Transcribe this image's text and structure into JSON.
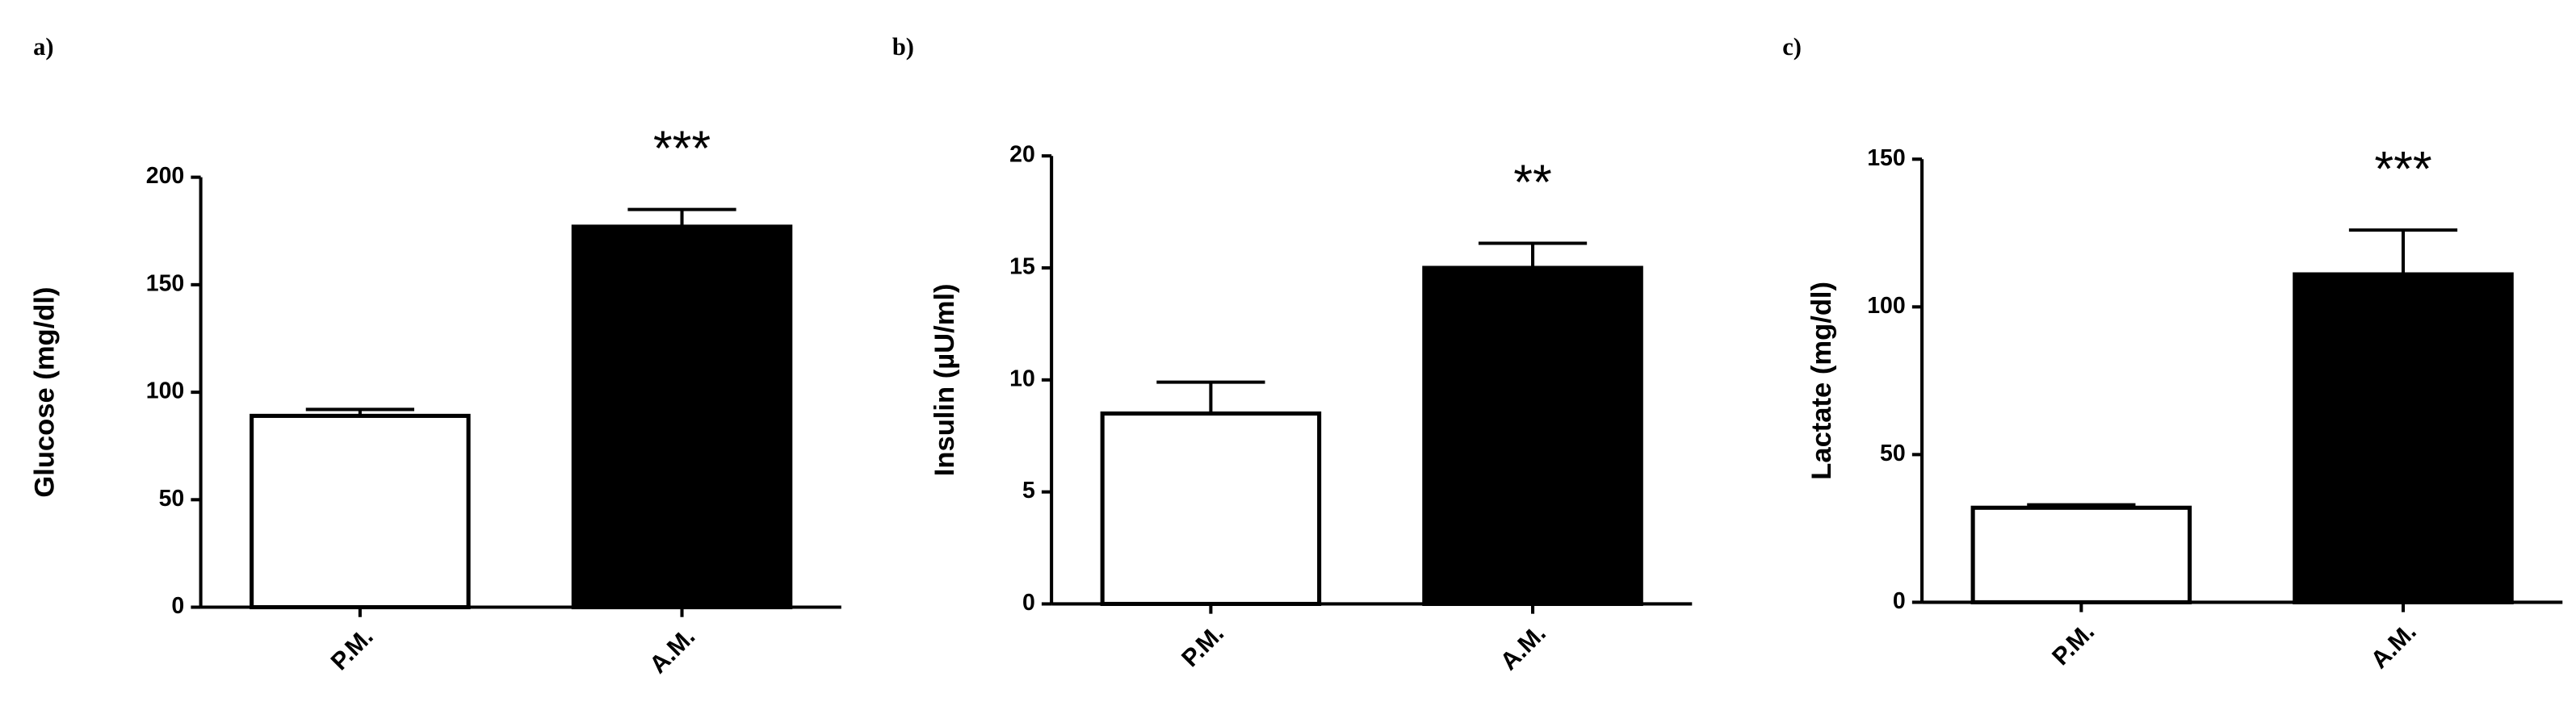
{
  "chart_data": [
    {
      "type": "bar",
      "panel_label": "a)",
      "y_label": "Glucose (mg/dl)",
      "categories": [
        "P.M.",
        "A.M."
      ],
      "values": [
        89,
        177
      ],
      "errors": [
        3,
        8
      ],
      "colors": [
        "#ffffff",
        "#000000"
      ],
      "annotation": "***",
      "ylim": [
        0,
        200
      ],
      "yticks": [
        0,
        50,
        100,
        150,
        200
      ]
    },
    {
      "type": "bar",
      "panel_label": "b)",
      "y_label": "Insulin (µU/ml)",
      "categories": [
        "P.M.",
        "A.M."
      ],
      "values": [
        8.5,
        15
      ],
      "errors": [
        1.4,
        1.1
      ],
      "colors": [
        "#ffffff",
        "#000000"
      ],
      "annotation": "**",
      "ylim": [
        0,
        20
      ],
      "yticks": [
        0,
        5,
        10,
        15,
        20
      ]
    },
    {
      "type": "bar",
      "panel_label": "c)",
      "y_label": "Lactate (mg/dl)",
      "categories": [
        "P.M.",
        "A.M."
      ],
      "values": [
        32,
        111
      ],
      "errors": [
        1,
        15
      ],
      "colors": [
        "#ffffff",
        "#000000"
      ],
      "annotation": "***",
      "ylim": [
        0,
        150
      ],
      "yticks": [
        0,
        50,
        100,
        150
      ]
    }
  ]
}
